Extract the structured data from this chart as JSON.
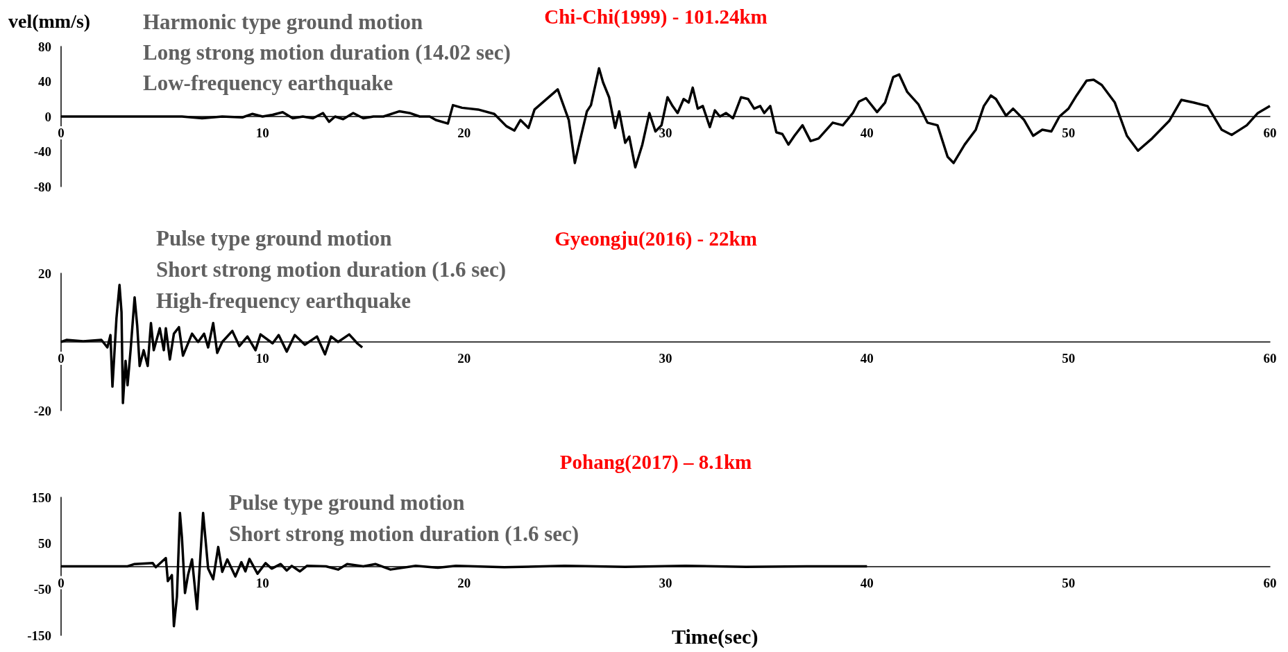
{
  "chart_data": [
    {
      "type": "line",
      "title": "Chi-Chi(1999) - 101.24km",
      "ylabel": "vel(mm/s)",
      "annotations": [
        "Harmonic type ground motion",
        "Long strong motion duration (14.02 sec)",
        "Low-frequency earthquake"
      ],
      "x": [
        0,
        1,
        2,
        3,
        4,
        5,
        6,
        7,
        8,
        9,
        9.5,
        10,
        10.5,
        11,
        11.5,
        12,
        12.5,
        13,
        13.3,
        13.6,
        14,
        14.5,
        15,
        15.5,
        16,
        16.8,
        17.3,
        17.8,
        18.3,
        18.6,
        19.2,
        19.45,
        19.9,
        20.7,
        21.5,
        22.1,
        22.5,
        22.8,
        23.2,
        23.5,
        24.65,
        25.2,
        25.5,
        25.8,
        26.1,
        26.3,
        26.7,
        26.9,
        27.2,
        27.5,
        27.7,
        28.0,
        28.2,
        28.5,
        28.85,
        29.2,
        29.5,
        29.8,
        30.1,
        30.35,
        30.6,
        30.9,
        31.15,
        31.35,
        31.6,
        31.85,
        32.2,
        32.45,
        32.7,
        33.0,
        33.35,
        33.75,
        34.1,
        34.4,
        34.7,
        34.9,
        35.2,
        35.5,
        35.8,
        36.1,
        36.4,
        36.8,
        37.2,
        37.6,
        38.3,
        38.8,
        39.3,
        39.6,
        39.95,
        40.5,
        40.9,
        41.3,
        41.6,
        42.0,
        42.55,
        43.0,
        43.5,
        44.0,
        44.3,
        44.85,
        45.4,
        45.8,
        46.15,
        46.4,
        46.9,
        47.25,
        47.8,
        48.25,
        48.7,
        49.15,
        49.55,
        50.0,
        50.4,
        50.9,
        51.25,
        51.65,
        52.3,
        52.9,
        53.45,
        54.15,
        55.0,
        55.6,
        56.2,
        56.9,
        57.6,
        58.1,
        58.85,
        59.4,
        60.0
      ],
      "values": [
        0,
        0,
        0,
        0,
        0,
        0,
        0,
        -2,
        0,
        -1,
        3,
        0,
        2,
        5,
        -2,
        0,
        -2,
        4,
        -6,
        0,
        -3,
        4,
        -2,
        0,
        0,
        6,
        4,
        0,
        0,
        -4,
        -8,
        13,
        10,
        8,
        3,
        -11,
        -16,
        -4,
        -13,
        8,
        31,
        -4,
        -53,
        -23,
        6,
        13,
        55,
        39,
        22,
        -13,
        6,
        -30,
        -23,
        -58,
        -32,
        4,
        -17,
        -10,
        22,
        12,
        4,
        20,
        16,
        33,
        9,
        12,
        -12,
        7,
        0,
        4,
        -2,
        22,
        20,
        9,
        12,
        4,
        12,
        -18,
        -20,
        -32,
        -22,
        -10,
        -28,
        -25,
        -7,
        -10,
        4,
        17,
        21,
        5,
        16,
        45,
        48,
        28,
        14,
        -7,
        -10,
        -46,
        -53,
        -32,
        -15,
        12,
        24,
        20,
        1,
        9,
        -4,
        -22,
        -15,
        -17,
        0,
        9,
        24,
        41,
        42,
        36,
        16,
        -22,
        -39,
        -25,
        -5,
        19,
        16,
        12,
        -15,
        -21,
        -10,
        4,
        12
      ],
      "color": "#000000",
      "xlim": [
        0,
        60
      ],
      "xticks": [
        0,
        10,
        20,
        30,
        40,
        50,
        60
      ],
      "ylim": [
        -80,
        80
      ],
      "yticks": [
        -80,
        -40,
        0,
        40,
        80
      ]
    },
    {
      "type": "line",
      "title": "Gyeongju(2016) - 22km",
      "annotations": [
        "Pulse type ground motion",
        "Short strong motion duration (1.6 sec)",
        "High-frequency earthquake"
      ],
      "x": [
        0,
        0.27,
        1.1,
        2.0,
        2.3,
        2.45,
        2.55,
        2.75,
        2.9,
        3.0,
        3.07,
        3.2,
        3.3,
        3.45,
        3.65,
        3.78,
        3.9,
        4.1,
        4.3,
        4.46,
        4.6,
        4.9,
        5.1,
        5.2,
        5.4,
        5.6,
        5.85,
        6.05,
        6.5,
        6.8,
        7.1,
        7.3,
        7.55,
        7.75,
        8.0,
        8.5,
        8.85,
        9.25,
        9.65,
        9.9,
        10.5,
        10.8,
        11.2,
        11.6,
        12.1,
        12.7,
        13.1,
        13.4,
        13.75,
        14.3,
        14.7,
        14.95
      ],
      "values": [
        0,
        0.6,
        0.2,
        0.6,
        -1.6,
        2,
        -13,
        7,
        16.6,
        8.7,
        -17.8,
        -5.5,
        -12.6,
        -2.4,
        13,
        4.7,
        -7,
        -2.4,
        -7,
        5.5,
        -2.4,
        4,
        -2.4,
        4,
        -5.1,
        2.4,
        4.3,
        -4,
        2.4,
        0,
        2.4,
        -1.6,
        5.5,
        -3.2,
        0,
        3.2,
        -1.2,
        1.6,
        -2.4,
        2.2,
        -0.4,
        2,
        -2.8,
        2,
        -0.8,
        1.6,
        -3.6,
        1.6,
        0,
        2.2,
        -0.4,
        -1.6
      ],
      "color": "#000000",
      "xlim": [
        0,
        60
      ],
      "xticks": [
        0,
        10,
        20,
        30,
        40,
        50,
        60
      ],
      "ylim": [
        -20,
        20
      ],
      "yticks": [
        -20,
        20
      ]
    },
    {
      "type": "line",
      "title": "Pohang(2017) – 8.1km",
      "xlabel": "Time(sec)",
      "annotations": [
        "Pulse type ground motion",
        "Short strong motion duration (1.6 sec)"
      ],
      "x": [
        0,
        3.3,
        3.65,
        4.55,
        4.7,
        5.2,
        5.3,
        5.5,
        5.6,
        5.75,
        5.9,
        6.0,
        6.15,
        6.3,
        6.5,
        6.75,
        7.05,
        7.3,
        7.55,
        7.8,
        8.0,
        8.25,
        8.65,
        8.95,
        9.15,
        9.35,
        9.75,
        10.15,
        10.45,
        10.9,
        11.2,
        11.45,
        11.85,
        12.2,
        13.15,
        13.75,
        14.2,
        15.0,
        15.6,
        16.35,
        17.6,
        18.7,
        19.6,
        22,
        25,
        28,
        31,
        34,
        37,
        40
      ],
      "values": [
        0,
        0,
        5,
        7,
        -2,
        18,
        -32,
        -19,
        -130,
        -66,
        116,
        62,
        -58,
        -19,
        15,
        -93,
        116,
        -5,
        -28,
        42,
        -12,
        15,
        -22,
        9,
        -11,
        16,
        -16,
        7,
        -5,
        5,
        -9,
        1,
        -11,
        1,
        0,
        -7,
        5,
        0,
        5,
        -7,
        1,
        -3,
        1,
        -2,
        1,
        -1,
        1,
        -1,
        0,
        0
      ],
      "color": "#000000",
      "xlim": [
        0,
        60
      ],
      "xticks": [
        0,
        10,
        20,
        30,
        40,
        50,
        60
      ],
      "ylim": [
        -150,
        150
      ],
      "yticks": [
        -150,
        -50,
        50,
        150
      ]
    }
  ]
}
